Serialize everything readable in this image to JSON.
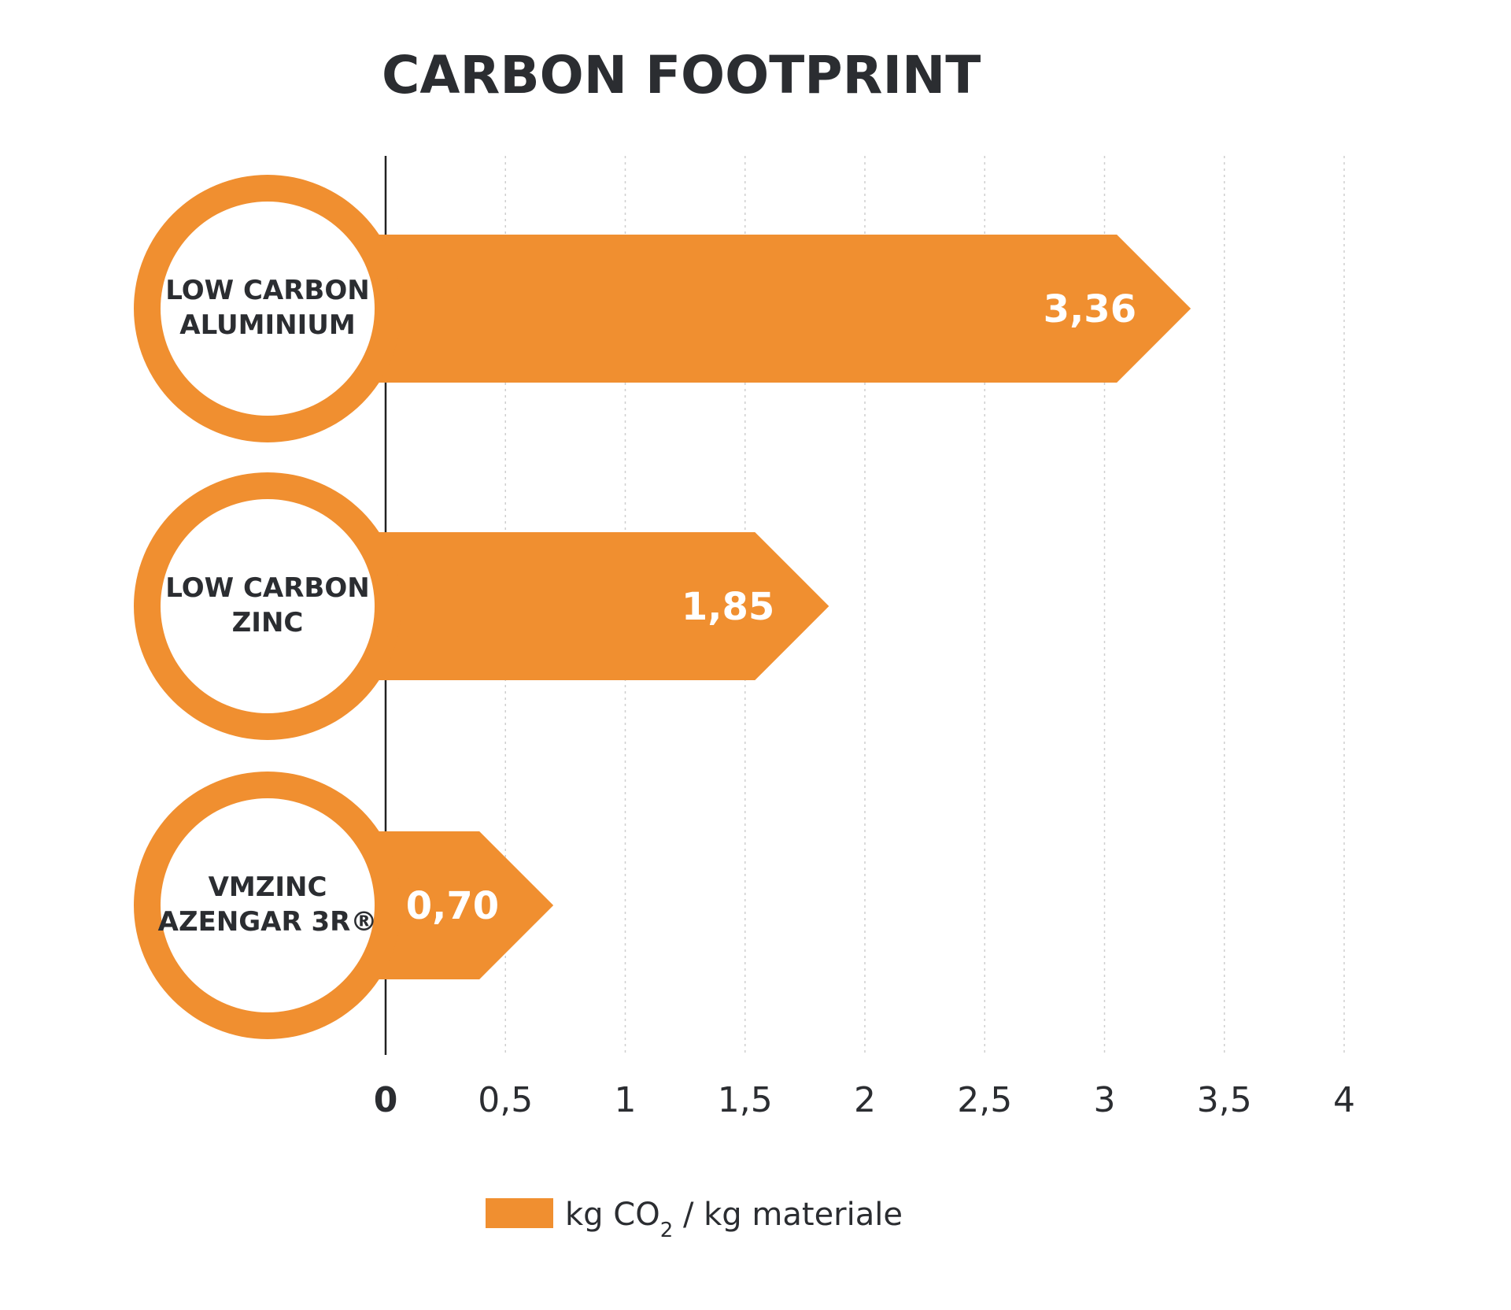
{
  "chart_data": {
    "type": "bar",
    "orientation": "horizontal",
    "title": "CARBON FOOTPRINT",
    "categories": [
      [
        "LOW CARBON",
        "ALUMINIUM"
      ],
      [
        "LOW CARBON",
        "ZINC"
      ],
      [
        "VMZINC",
        "AZENGAR 3R®"
      ]
    ],
    "values": [
      3.36,
      1.85,
      0.7
    ],
    "value_labels": [
      "3,36",
      "1,85",
      "0,70"
    ],
    "xlim": [
      0,
      4
    ],
    "ticks": [
      0,
      0.5,
      1,
      1.5,
      2,
      2.5,
      3,
      3.5,
      4
    ],
    "tick_labels": [
      "0",
      "0,5",
      "1",
      "1,5",
      "2",
      "2,5",
      "3",
      "3,5",
      "4"
    ],
    "grid": true,
    "legend": {
      "position": "bottom",
      "entries": [
        {
          "text_main": "kg CO",
          "text_sub": "2",
          "text_rest": " / kg materiale"
        }
      ]
    },
    "colors": {
      "bar": "#f08f30",
      "text": "#2b2d31",
      "grid": "#cfcfcf"
    }
  }
}
